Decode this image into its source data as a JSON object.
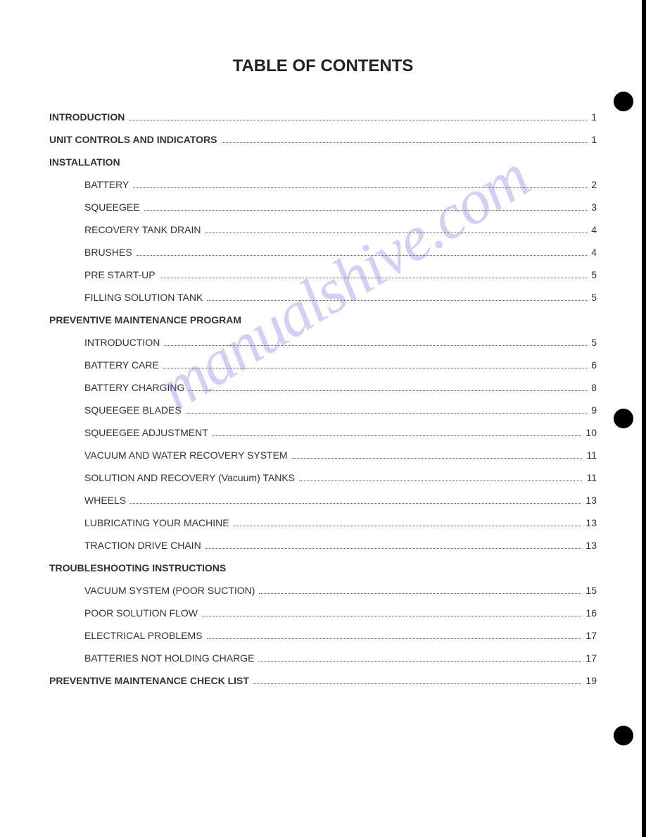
{
  "title": "TABLE OF CONTENTS",
  "watermark": "manualshive.com",
  "entries": [
    {
      "label": "INTRODUCTION",
      "page": "1",
      "type": "section",
      "dots": true
    },
    {
      "label": "UNIT CONTROLS AND INDICATORS",
      "page": "1",
      "type": "section",
      "dots": true
    },
    {
      "label": "INSTALLATION",
      "page": "",
      "type": "section",
      "dots": false
    },
    {
      "label": "BATTERY",
      "page": "2",
      "type": "sub",
      "dots": true
    },
    {
      "label": "SQUEEGEE",
      "page": "3",
      "type": "sub",
      "dots": true
    },
    {
      "label": "RECOVERY TANK DRAIN",
      "page": "4",
      "type": "sub",
      "dots": true
    },
    {
      "label": "BRUSHES",
      "page": "4",
      "type": "sub",
      "dots": true
    },
    {
      "label": "PRE START-UP",
      "page": "5",
      "type": "sub",
      "dots": true
    },
    {
      "label": "FILLING SOLUTION TANK",
      "page": "5",
      "type": "sub",
      "dots": true
    },
    {
      "label": "PREVENTIVE MAINTENANCE PROGRAM",
      "page": "",
      "type": "section",
      "dots": false
    },
    {
      "label": "INTRODUCTION",
      "page": "5",
      "type": "sub",
      "dots": true
    },
    {
      "label": "BATTERY CARE",
      "page": "6",
      "type": "sub",
      "dots": true
    },
    {
      "label": "BATTERY CHARGING",
      "page": "8",
      "type": "sub",
      "dots": true
    },
    {
      "label": "SQUEEGEE BLADES",
      "page": "9",
      "type": "sub",
      "dots": true
    },
    {
      "label": "SQUEEGEE ADJUSTMENT",
      "page": "10",
      "type": "sub",
      "dots": true
    },
    {
      "label": "VACUUM AND WATER RECOVERY SYSTEM",
      "page": "11",
      "type": "sub",
      "dots": true
    },
    {
      "label": "SOLUTION AND RECOVERY (Vacuum) TANKS",
      "page": "11",
      "type": "sub",
      "dots": true
    },
    {
      "label": "WHEELS",
      "page": "13",
      "type": "sub",
      "dots": true
    },
    {
      "label": "LUBRICATING YOUR MACHINE",
      "page": "13",
      "type": "sub",
      "dots": true
    },
    {
      "label": "TRACTION DRIVE CHAIN",
      "page": "13",
      "type": "sub",
      "dots": true
    },
    {
      "label": "TROUBLESHOOTING INSTRUCTIONS",
      "page": "",
      "type": "section",
      "dots": false
    },
    {
      "label": "VACUUM SYSTEM (POOR SUCTION)",
      "page": "15",
      "type": "sub",
      "dots": true
    },
    {
      "label": "POOR SOLUTION FLOW",
      "page": "16",
      "type": "sub",
      "dots": true
    },
    {
      "label": "ELECTRICAL PROBLEMS",
      "page": "17",
      "type": "sub",
      "dots": true
    },
    {
      "label": "BATTERIES NOT HOLDING CHARGE",
      "page": "17",
      "type": "sub",
      "dots": true
    },
    {
      "label": "PREVENTIVE MAINTENANCE CHECK LIST",
      "page": "19",
      "type": "section",
      "dots": true
    }
  ]
}
